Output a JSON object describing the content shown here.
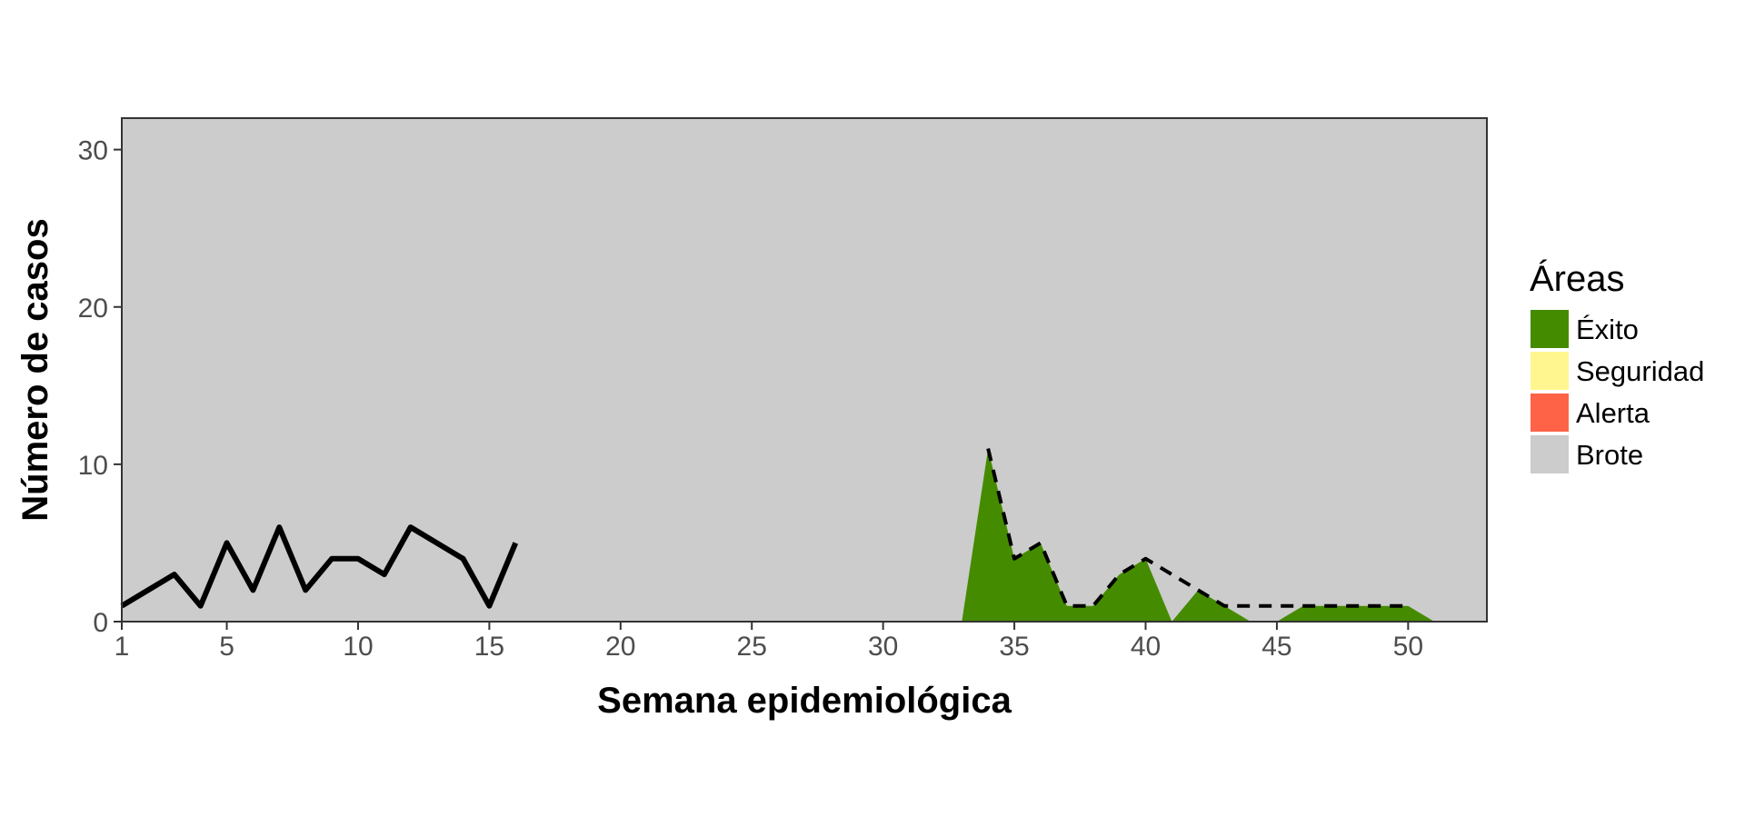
{
  "chart_data": {
    "type": "area",
    "xlabel": "Semana epidemiológica",
    "ylabel": "Número de casos",
    "xlim": [
      1,
      53
    ],
    "ylim": [
      0,
      32
    ],
    "x_ticks": [
      1,
      5,
      10,
      15,
      20,
      25,
      30,
      35,
      40,
      45,
      50
    ],
    "y_ticks": [
      0,
      10,
      20,
      30
    ],
    "grid": false,
    "legend": {
      "title": "Áreas",
      "placement": "right",
      "items": [
        {
          "label": "Éxito",
          "color": "#458B00"
        },
        {
          "label": "Seguridad",
          "color": "#FFF68F"
        },
        {
          "label": "Alerta",
          "color": "#FF6347"
        },
        {
          "label": "Brote",
          "color": "#CCCCCC"
        }
      ]
    },
    "areas": {
      "Exito": {
        "x": [
          1,
          33,
          34,
          35,
          36,
          37,
          38,
          39,
          40,
          41,
          42,
          43,
          44,
          45,
          46,
          47,
          48,
          49,
          50,
          51,
          53
        ],
        "y": [
          0,
          0,
          11,
          4,
          5,
          1,
          1,
          3,
          4,
          0,
          2,
          1,
          0,
          0,
          1,
          1,
          1,
          1,
          1,
          0,
          0
        ]
      }
    },
    "series": [
      {
        "style": "solid",
        "color": "#000000",
        "x": [
          1,
          2,
          3,
          4,
          5,
          6,
          7,
          8,
          9,
          10,
          11,
          12,
          13,
          14,
          15,
          16
        ],
        "y": [
          1,
          2,
          3,
          1,
          5,
          2,
          6,
          2,
          4,
          4,
          3,
          6,
          5,
          4,
          1,
          5
        ]
      },
      {
        "style": "dashed",
        "color": "#000000",
        "x": [
          34,
          35,
          36,
          37,
          38,
          39,
          40,
          41,
          42,
          43,
          44,
          45,
          46,
          47,
          48,
          49,
          50
        ],
        "y": [
          11,
          4,
          5,
          1,
          1,
          3,
          4,
          3,
          2,
          1,
          1,
          1,
          1,
          1,
          1,
          1,
          1
        ]
      }
    ]
  }
}
